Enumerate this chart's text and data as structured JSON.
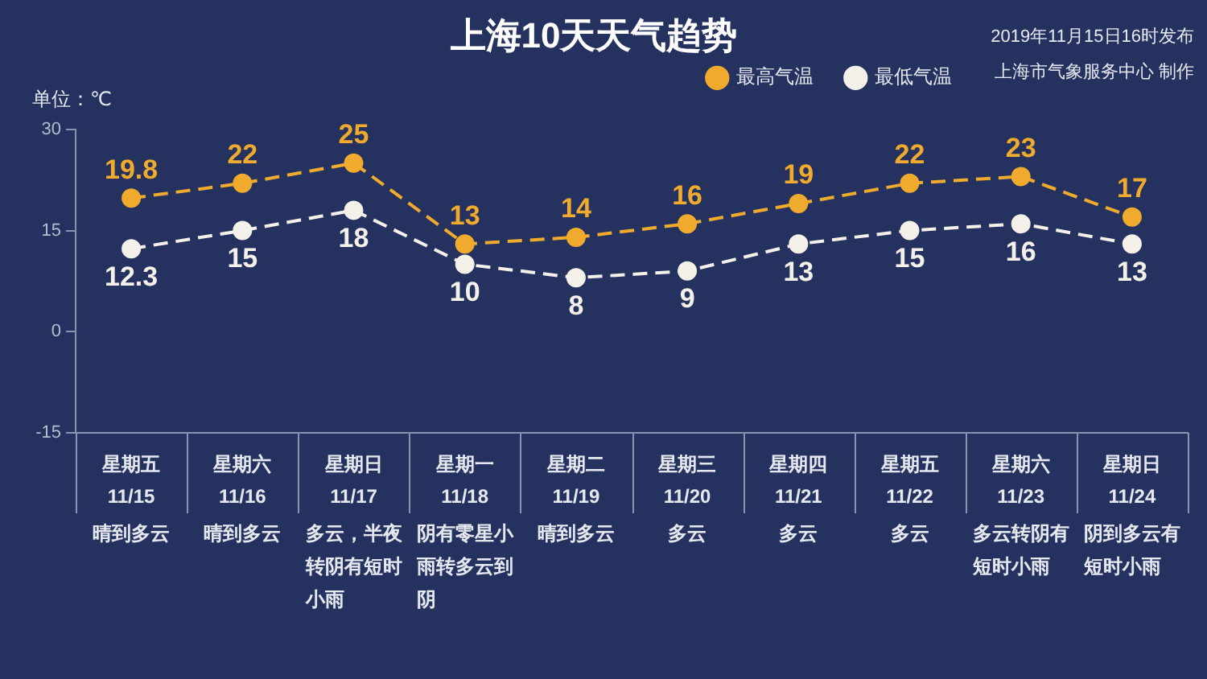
{
  "chart_data": {
    "type": "line",
    "title": "上海10天天气趋势",
    "ylabel": "单位：℃",
    "annotations": [
      "2019年11月15日16时发布",
      "上海市气象服务中心 制作",
      "晴到多云",
      "晴到多云",
      "多云，半夜转阴有短时小雨",
      "阴有零星小雨转多云到阴",
      "晴到多云",
      "多云",
      "多云",
      "多云",
      "多云转阴有短时小雨",
      "阴到多云有短时小雨"
    ],
    "categories": [
      "星期五 11/15",
      "星期六 11/16",
      "星期日 11/17",
      "星期一 11/18",
      "星期二 11/19",
      "星期三 11/20",
      "星期四 11/21",
      "星期五 11/22",
      "星期六 11/23",
      "星期日 11/24"
    ],
    "series": [
      {
        "name": "最高气温",
        "color": "#f0ab2e",
        "values": [
          19.8,
          22,
          25,
          13,
          14,
          16,
          19,
          22,
          23,
          17
        ]
      },
      {
        "name": "最低气温",
        "color": "#f4f1ea",
        "values": [
          12.3,
          15,
          18,
          10,
          8,
          9,
          13,
          15,
          16,
          13
        ]
      }
    ],
    "ylim": [
      -15,
      30
    ],
    "yticks": [
      -15,
      0,
      15,
      30
    ],
    "grid": false,
    "legend": "top right",
    "marker": "circle",
    "line_style": "dashed",
    "data_labels": true
  }
}
